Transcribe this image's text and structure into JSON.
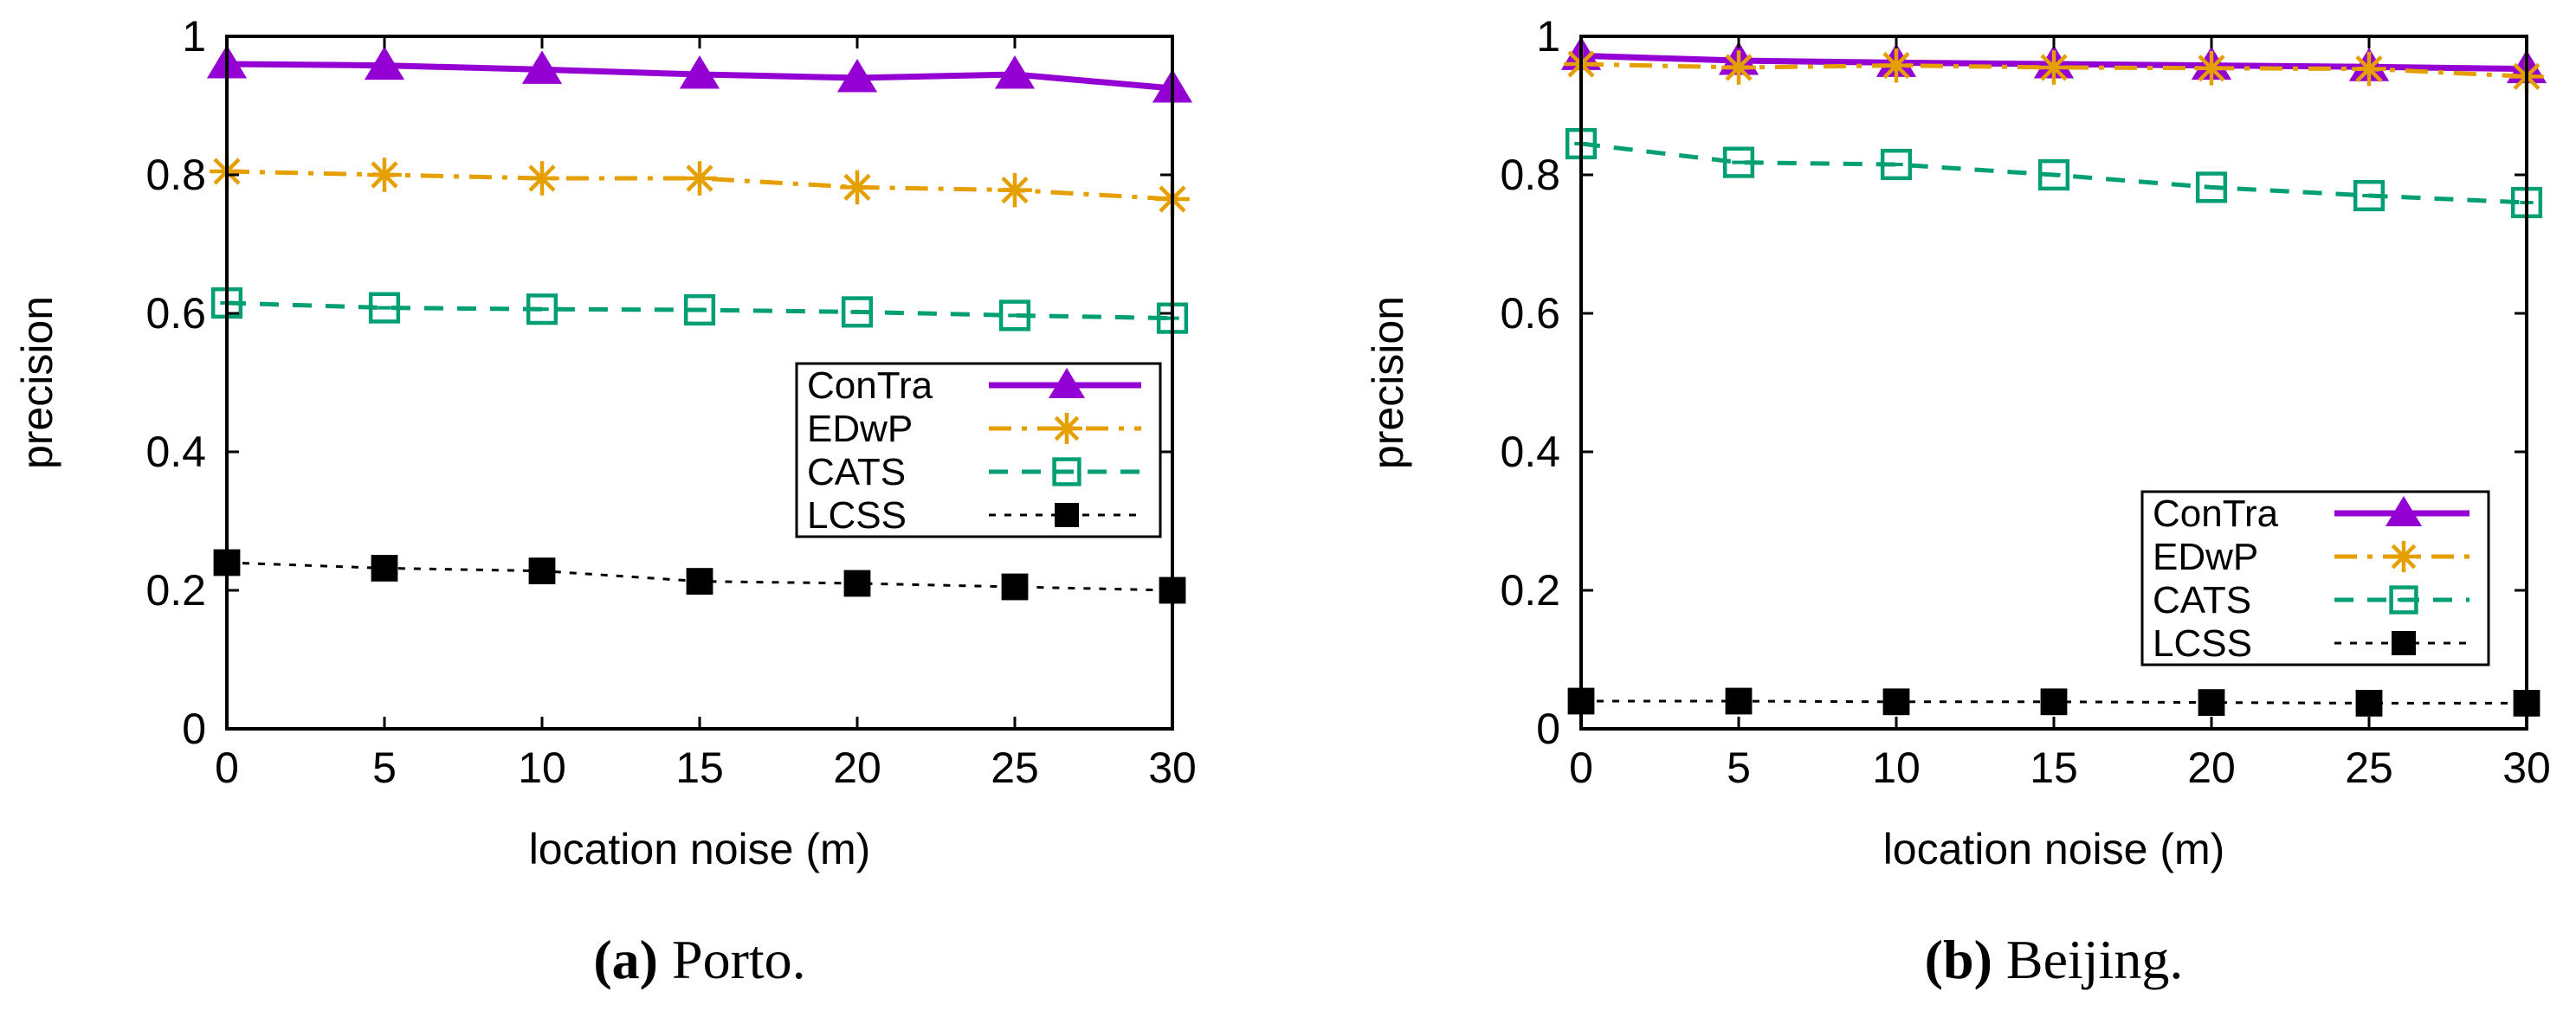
{
  "chart_data": [
    {
      "type": "line",
      "caption_label": "(a)",
      "caption_text": "Porto.",
      "xlabel": "location noise (m)",
      "ylabel": "precision",
      "xlim": [
        0,
        30
      ],
      "ylim": [
        0,
        1
      ],
      "xticks": [
        0,
        5,
        10,
        15,
        20,
        25,
        30
      ],
      "yticks": [
        0,
        0.2,
        0.4,
        0.6,
        0.8,
        1
      ],
      "ytick_labels": [
        "0",
        "0.2",
        "0.4",
        "0.6",
        "0.8",
        "1"
      ],
      "legend_position": "center-right",
      "x": [
        0,
        5,
        10,
        15,
        20,
        25,
        30
      ],
      "series": [
        {
          "name": "ConTra",
          "color": "#9400d3",
          "marker": "triangle",
          "line": "solid",
          "values": [
            0.96,
            0.958,
            0.952,
            0.945,
            0.94,
            0.945,
            0.925
          ]
        },
        {
          "name": "EDwP",
          "color": "#e69f00",
          "marker": "star",
          "line": "dashdot",
          "values": [
            0.805,
            0.8,
            0.795,
            0.795,
            0.782,
            0.778,
            0.765
          ]
        },
        {
          "name": "CATS",
          "color": "#009e73",
          "marker": "square-open",
          "line": "dashed",
          "values": [
            0.615,
            0.608,
            0.606,
            0.605,
            0.602,
            0.597,
            0.593
          ]
        },
        {
          "name": "LCSS",
          "color": "#000000",
          "marker": "square-filled",
          "line": "dotted",
          "values": [
            0.24,
            0.232,
            0.228,
            0.213,
            0.21,
            0.205,
            0.2
          ]
        }
      ]
    },
    {
      "type": "line",
      "caption_label": "(b)",
      "caption_text": "Beijing.",
      "xlabel": "location noise (m)",
      "ylabel": "precision",
      "xlim": [
        0,
        30
      ],
      "ylim": [
        0,
        1
      ],
      "xticks": [
        0,
        5,
        10,
        15,
        20,
        25,
        30
      ],
      "yticks": [
        0,
        0.2,
        0.4,
        0.6,
        0.8,
        1
      ],
      "ytick_labels": [
        "0",
        "0.2",
        "0.4",
        "0.6",
        "0.8",
        "1"
      ],
      "legend_position": "bottom-right",
      "x": [
        0,
        5,
        10,
        15,
        20,
        25,
        30
      ],
      "series": [
        {
          "name": "ConTra",
          "color": "#9400d3",
          "marker": "triangle",
          "line": "solid",
          "values": [
            0.972,
            0.965,
            0.962,
            0.96,
            0.958,
            0.956,
            0.953
          ]
        },
        {
          "name": "EDwP",
          "color": "#e69f00",
          "marker": "star",
          "line": "dashdot",
          "values": [
            0.96,
            0.955,
            0.958,
            0.955,
            0.954,
            0.953,
            0.942
          ]
        },
        {
          "name": "CATS",
          "color": "#009e73",
          "marker": "square-open",
          "line": "dashed",
          "values": [
            0.845,
            0.818,
            0.815,
            0.8,
            0.782,
            0.77,
            0.76
          ]
        },
        {
          "name": "LCSS",
          "color": "#000000",
          "marker": "square-filled",
          "line": "dotted",
          "values": [
            0.04,
            0.04,
            0.039,
            0.039,
            0.038,
            0.037,
            0.037
          ]
        }
      ]
    }
  ]
}
